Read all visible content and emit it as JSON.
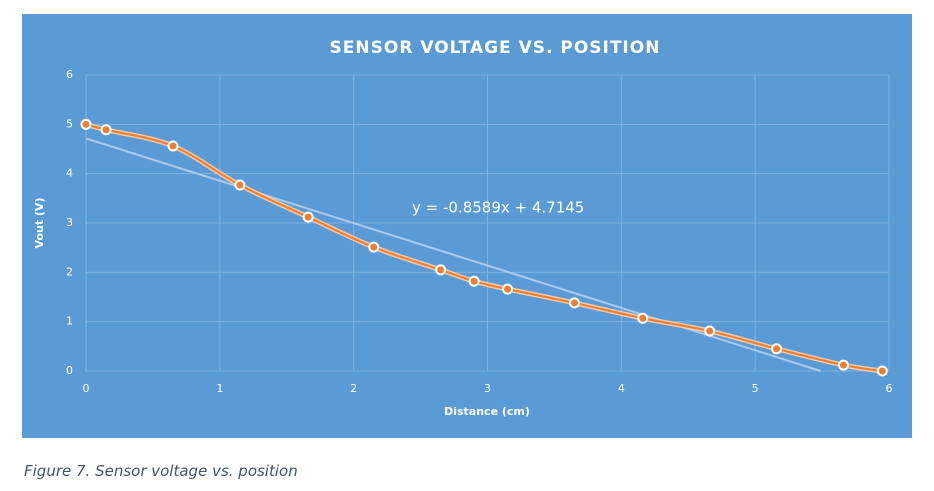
{
  "chart_data": {
    "type": "scatter",
    "title": "SENSOR VOLTAGE VS. POSITION",
    "x_label": "Distance (cm)",
    "y_label": "Vout (V)",
    "x": [
      0,
      0.15,
      0.65,
      1.15,
      1.66,
      2.15,
      2.65,
      2.9,
      3.15,
      3.65,
      4.16,
      4.66,
      5.16,
      5.66,
      5.95
    ],
    "series": [
      {
        "color": "#ed7d31",
        "values": [
          5.0,
          4.89,
          4.56,
          3.77,
          3.12,
          2.51,
          2.05,
          1.82,
          1.66,
          1.38,
          1.07,
          0.81,
          0.45,
          0.12,
          0.0
        ]
      }
    ],
    "trendline": {
      "label": "y = -0.8589x + 4.7145",
      "slope": -0.8589,
      "intercept": 4.7145,
      "color": "#a9cbec"
    },
    "xlim": [
      0,
      6
    ],
    "xticks": [
      0,
      1,
      2,
      3,
      4,
      5,
      6
    ],
    "ylim": [
      0,
      6
    ],
    "yticks": [
      0,
      1,
      2,
      3,
      4,
      5,
      6
    ],
    "grid": true,
    "background": "#5b9bd5"
  },
  "caption": "Figure 7. Sensor voltage vs. position"
}
